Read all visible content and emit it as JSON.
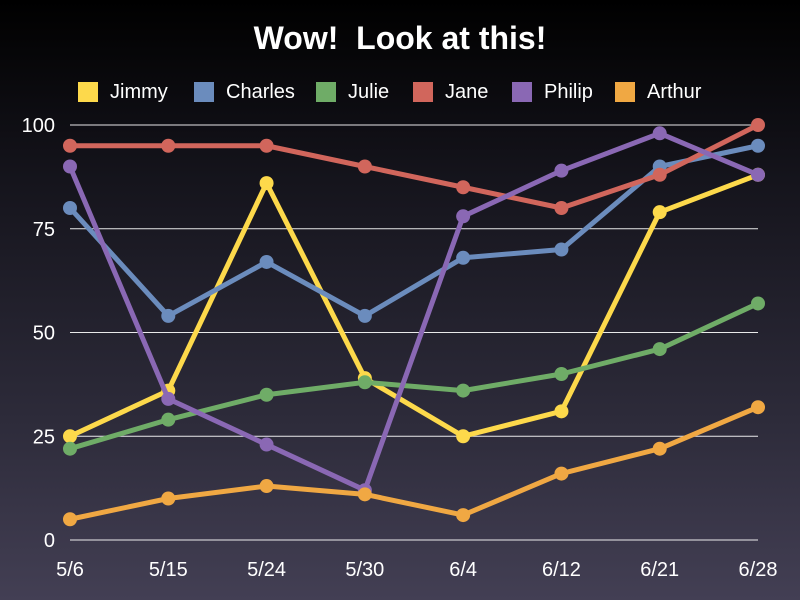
{
  "chart_data": {
    "type": "line",
    "title": "Wow!  Look at this!",
    "xlabel": "",
    "ylabel": "",
    "categories": [
      "5/6",
      "5/15",
      "5/24",
      "5/30",
      "6/4",
      "6/12",
      "6/21",
      "6/28"
    ],
    "ylim": [
      0,
      100
    ],
    "yticks": [
      0,
      25,
      50,
      75,
      100
    ],
    "grid": true,
    "legend_position": "top",
    "series": [
      {
        "name": "Jimmy",
        "color": "#fdd94b",
        "values": [
          25,
          36,
          86,
          39,
          25,
          31,
          79,
          88
        ]
      },
      {
        "name": "Charles",
        "color": "#6b8cbd",
        "values": [
          80,
          54,
          67,
          54,
          68,
          70,
          90,
          95
        ]
      },
      {
        "name": "Julie",
        "color": "#6fac67",
        "values": [
          22,
          29,
          35,
          38,
          36,
          40,
          46,
          57
        ]
      },
      {
        "name": "Jane",
        "color": "#d1665c",
        "values": [
          95,
          95,
          95,
          90,
          85,
          80,
          88,
          100
        ]
      },
      {
        "name": "Philip",
        "color": "#8a68b4",
        "values": [
          90,
          34,
          23,
          12,
          78,
          89,
          98,
          88
        ]
      },
      {
        "name": "Arthur",
        "color": "#f0a843",
        "values": [
          5,
          10,
          13,
          11,
          6,
          16,
          22,
          32
        ]
      }
    ]
  }
}
